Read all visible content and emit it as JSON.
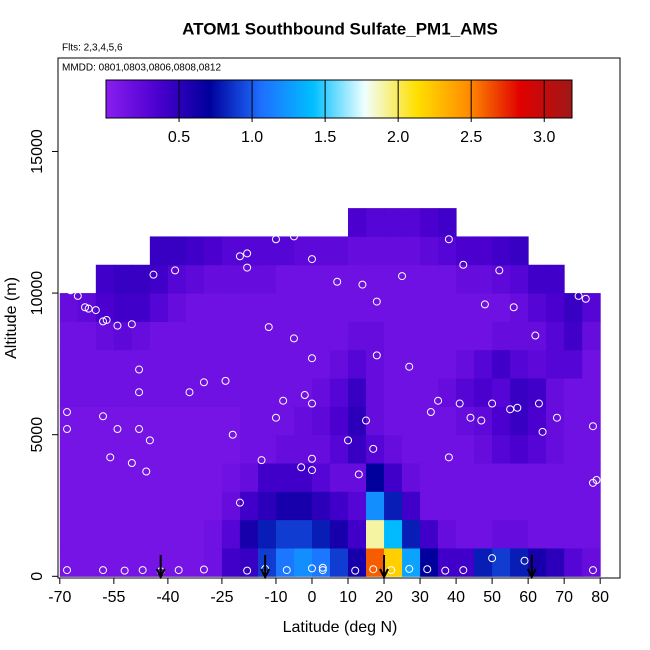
{
  "chart_data": {
    "type": "heatmap",
    "title": "ATOM1 Southbound Sulfate_PM1_AMS",
    "subtitle": "Flts: 2,3,4,5,6",
    "annotation": "MMDD: 0801,0803,0806,0808,0812",
    "xlabel": "Latitude (deg N)",
    "ylabel": "Altitude (m)",
    "xlim": [
      -70.5,
      85.5
    ],
    "ylim": [
      -60,
      18300
    ],
    "xticks": [
      -70,
      -55,
      -40,
      -25,
      -10,
      0,
      10,
      20,
      30,
      40,
      50,
      60,
      70,
      80
    ],
    "yticks": [
      0,
      5000,
      10000,
      15000
    ],
    "xbins": [
      -70,
      -65,
      -60,
      -55,
      -50,
      -45,
      -40,
      -35,
      -30,
      -25,
      -20,
      -15,
      -10,
      -5,
      0,
      5,
      10,
      15,
      20,
      25,
      30,
      35,
      40,
      45,
      50,
      55,
      60,
      65,
      70,
      75,
      80
    ],
    "ybins": [
      0,
      1000,
      2000,
      3000,
      4000,
      5000,
      6000,
      7000,
      8000,
      9000,
      10000,
      11000,
      12000,
      13000
    ],
    "values": [
      [
        0.12,
        0.12,
        0.12,
        0.12,
        0.12,
        0.12,
        0.12,
        0.12,
        0.15,
        0.4,
        0.45,
        0.9,
        1.1,
        1.2,
        1.1,
        0.9,
        0.6,
        2.6,
        2.2,
        1.3,
        0.7,
        0.4,
        0.4,
        0.8,
        0.9,
        0.8,
        0.6,
        0.5,
        0.3,
        0.2
      ],
      [
        0.12,
        0.12,
        0.12,
        0.12,
        0.12,
        0.12,
        0.12,
        0.12,
        0.15,
        0.3,
        0.6,
        0.8,
        0.9,
        0.9,
        0.8,
        0.6,
        0.4,
        1.9,
        1.4,
        0.8,
        0.4,
        0.2,
        0.15,
        0.15,
        0.2,
        0.2,
        0.15,
        0.15,
        0.15,
        0.15
      ],
      [
        0.12,
        0.12,
        0.12,
        0.12,
        0.12,
        0.12,
        0.12,
        0.12,
        0.12,
        0.2,
        0.4,
        0.5,
        0.6,
        0.6,
        0.5,
        0.4,
        0.3,
        1.2,
        0.8,
        0.4,
        0.15,
        0.15,
        0.15,
        0.15,
        0.15,
        0.15,
        0.15,
        0.15,
        0.15,
        0.15
      ],
      [
        0.12,
        0.12,
        0.12,
        0.12,
        0.12,
        0.12,
        0.12,
        0.12,
        0.12,
        0.15,
        0.2,
        0.4,
        0.4,
        0.4,
        0.3,
        0.2,
        0.2,
        0.7,
        0.4,
        0.2,
        0.15,
        0.15,
        0.15,
        0.15,
        0.15,
        0.15,
        0.15,
        0.15,
        0.15,
        0.15
      ],
      [
        0.12,
        0.12,
        0.12,
        0.12,
        0.12,
        0.12,
        0.12,
        0.12,
        0.12,
        0.12,
        0.15,
        0.15,
        0.2,
        0.2,
        0.2,
        0.3,
        0.45,
        0.3,
        0.2,
        0.15,
        0.15,
        0.15,
        0.15,
        0.2,
        0.3,
        0.35,
        0.3,
        0.2,
        0.15,
        0.15
      ],
      [
        0.12,
        0.12,
        0.12,
        0.12,
        0.12,
        0.12,
        0.12,
        0.12,
        0.12,
        0.12,
        0.15,
        0.15,
        0.15,
        0.2,
        0.25,
        0.35,
        0.5,
        0.2,
        0.15,
        0.15,
        0.15,
        0.15,
        0.2,
        0.25,
        0.35,
        0.45,
        0.35,
        0.2,
        0.15,
        0.15
      ],
      [
        0.15,
        0.15,
        0.15,
        0.15,
        0.15,
        0.15,
        0.15,
        0.15,
        0.15,
        0.15,
        0.15,
        0.15,
        0.15,
        0.15,
        0.2,
        0.3,
        0.45,
        0.2,
        0.15,
        0.15,
        0.15,
        0.2,
        0.3,
        0.35,
        0.3,
        0.45,
        0.4,
        0.2,
        0.15,
        0.15
      ],
      [
        0.15,
        0.15,
        0.15,
        0.15,
        0.15,
        0.15,
        0.15,
        0.15,
        0.15,
        0.15,
        0.15,
        0.15,
        0.15,
        0.15,
        0.15,
        0.2,
        0.3,
        0.2,
        0.15,
        0.15,
        0.15,
        0.15,
        0.2,
        0.3,
        0.4,
        0.3,
        0.25,
        0.3,
        0.3,
        0.15
      ],
      [
        0.15,
        0.15,
        0.2,
        0.25,
        0.2,
        0.15,
        0.15,
        0.15,
        0.15,
        0.15,
        0.15,
        0.15,
        0.15,
        0.15,
        0.15,
        0.15,
        0.2,
        0.2,
        0.15,
        0.15,
        0.15,
        0.15,
        0.15,
        0.15,
        0.2,
        0.2,
        0.2,
        0.3,
        0.4,
        0.2
      ],
      [
        0.2,
        0.25,
        0.35,
        0.4,
        0.4,
        0.3,
        0.2,
        0.15,
        0.15,
        0.15,
        0.15,
        0.15,
        0.15,
        0.15,
        0.15,
        0.15,
        0.15,
        0.15,
        0.15,
        0.15,
        0.15,
        0.15,
        0.15,
        0.15,
        0.15,
        0.2,
        0.3,
        0.35,
        0.45,
        0.3
      ],
      [
        null,
        null,
        0.4,
        0.45,
        0.45,
        0.4,
        0.3,
        0.25,
        0.2,
        0.2,
        0.2,
        0.2,
        0.15,
        0.15,
        0.15,
        0.15,
        0.15,
        0.15,
        0.15,
        0.15,
        0.15,
        0.15,
        0.2,
        0.2,
        0.25,
        0.3,
        0.4,
        0.4,
        null,
        null
      ],
      [
        null,
        null,
        null,
        null,
        null,
        0.45,
        0.45,
        0.4,
        0.35,
        0.3,
        0.3,
        0.3,
        0.3,
        0.25,
        0.25,
        0.25,
        0.2,
        0.2,
        0.2,
        0.2,
        0.25,
        0.3,
        0.35,
        0.35,
        0.4,
        0.45,
        null,
        null,
        null,
        null
      ],
      [
        null,
        null,
        null,
        null,
        null,
        null,
        null,
        null,
        null,
        null,
        null,
        null,
        null,
        null,
        null,
        null,
        0.35,
        0.3,
        0.3,
        0.3,
        0.35,
        0.4,
        null,
        null,
        null,
        null,
        null,
        null,
        null,
        null
      ]
    ],
    "colors": [
      "#8a1ef0",
      "#4b00d0",
      "#00009c",
      "#1e6fff",
      "#00bfff",
      "#f0ffff",
      "#ffe000",
      "#ff8c00",
      "#e00000",
      "#a01818"
    ],
    "clim": [
      0,
      3.19
    ],
    "colorbar_ticks": [
      0.5,
      {
        "value": 1.0,
        "label": "1.0"
      },
      1.5,
      {
        "value": 2.0,
        "label": "2.0"
      },
      2.5,
      {
        "value": 3.0,
        "label": "3.0"
      }
    ],
    "samples": {
      "x": [
        -68,
        -68,
        -67,
        -66,
        -65,
        -63,
        -62,
        -60,
        -58,
        -57,
        -54,
        -50,
        -48,
        -48,
        -48,
        -45,
        -58,
        -56,
        -54,
        -50,
        -46,
        -44,
        -38,
        -34,
        -30,
        -24,
        -20,
        -18,
        -18,
        -10,
        -5,
        0,
        0,
        -12,
        -5,
        -2,
        0,
        -10,
        -8,
        -22,
        -14,
        -3,
        0,
        0,
        -20,
        13,
        10,
        15,
        17,
        25,
        18,
        14,
        7,
        18,
        27,
        35,
        41,
        47,
        50,
        55,
        57,
        63,
        64,
        68,
        78,
        79,
        78,
        38,
        42,
        52,
        56,
        48,
        62,
        74,
        76,
        69,
        33,
        38,
        44,
        -68,
        -58,
        -52,
        -47,
        -42,
        -37,
        -30,
        -18,
        -13,
        -7,
        0,
        3,
        3,
        12,
        17,
        22,
        27,
        32,
        37,
        42,
        50,
        59,
        78
      ],
      "y": [
        5800,
        5200,
        10100,
        10150,
        9900,
        9500,
        9450,
        9400,
        9000,
        9050,
        8850,
        8900,
        7300,
        6500,
        5200,
        4800,
        5650,
        4200,
        5200,
        4000,
        3700,
        10650,
        10800,
        6500,
        6850,
        6900,
        11300,
        11400,
        10900,
        11900,
        12000,
        11200,
        7700,
        8800,
        8400,
        6400,
        6100,
        5600,
        6200,
        5000,
        4100,
        3850,
        3750,
        4150,
        2600,
        3600,
        4800,
        5500,
        4500,
        10600,
        9700,
        10300,
        10400,
        7800,
        7400,
        6200,
        6100,
        5500,
        6100,
        5900,
        5950,
        6100,
        5100,
        5600,
        5300,
        3400,
        3300,
        11900,
        11000,
        10800,
        9500,
        9600,
        8500,
        9900,
        9800,
        11300,
        5800,
        4200,
        5600,
        220,
        220,
        200,
        220,
        180,
        220,
        240,
        200,
        260,
        220,
        280,
        300,
        220,
        200,
        250,
        220,
        260,
        250,
        200,
        220,
        640,
        550,
        220
      ]
    },
    "markers_x": [
      -42,
      -13,
      20,
      61
    ]
  }
}
